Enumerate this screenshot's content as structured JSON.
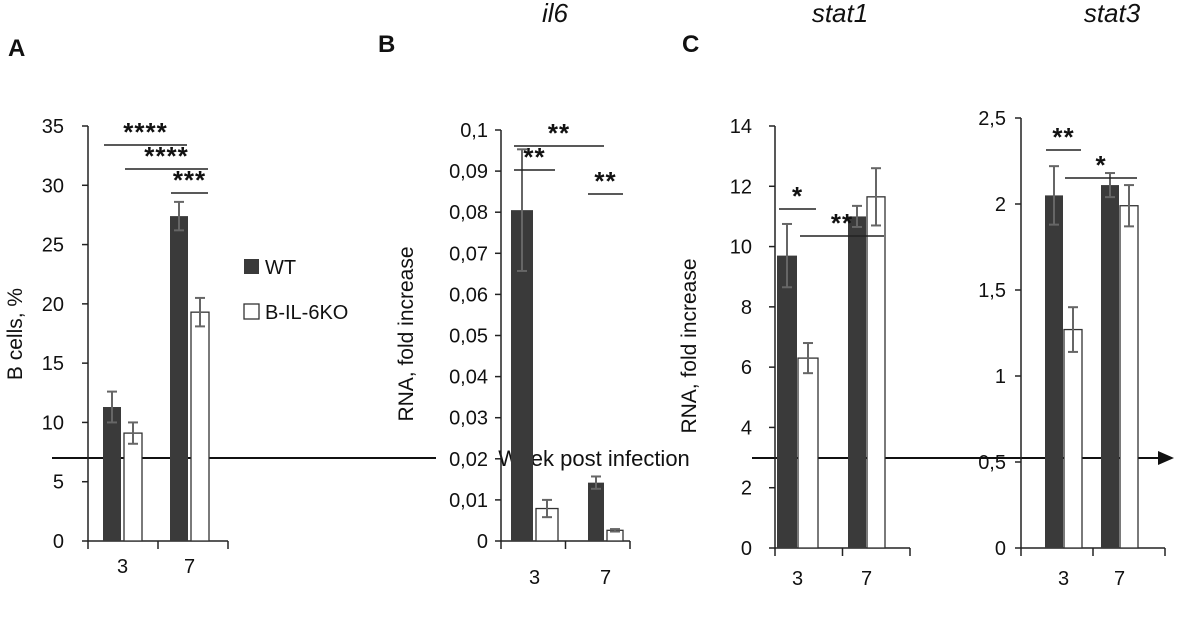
{
  "colors": {
    "wt": "#3a3a3a",
    "ko": "#ffffff",
    "ko_stroke": "#333333",
    "error_bar": "#666666"
  },
  "legend": {
    "items": [
      {
        "label": "WT",
        "key": "wt"
      },
      {
        "label": "B-IL-6KO",
        "key": "ko"
      }
    ]
  },
  "x_axis_label": "Week post infection",
  "chart_data": [
    {
      "panel": "A",
      "type": "bar",
      "title": "",
      "ylabel": "B cells, %",
      "xlabel": "Week post infection",
      "categories": [
        "3",
        "7"
      ],
      "ylim": [
        0,
        35
      ],
      "yticks": [
        "0",
        "5",
        "10",
        "15",
        "20",
        "25",
        "30",
        "35"
      ],
      "series": [
        {
          "name": "WT",
          "values": [
            11.3,
            27.4
          ],
          "errors": [
            1.3,
            1.2
          ]
        },
        {
          "name": "B-IL-6KO",
          "values": [
            9.1,
            19.3
          ],
          "errors": [
            0.9,
            1.2
          ]
        }
      ],
      "significance": [
        {
          "label": "****",
          "from": [
            0,
            0
          ],
          "to": [
            1,
            0
          ]
        },
        {
          "label": "****",
          "from": [
            0,
            1
          ],
          "to": [
            1,
            1
          ]
        },
        {
          "label": "***",
          "from": [
            1,
            0
          ],
          "to": [
            1,
            1
          ]
        }
      ]
    },
    {
      "panel": "B",
      "type": "bar",
      "title": "il6",
      "ylabel": "RNA, fold increase",
      "xlabel": "Week post infection",
      "categories": [
        "3",
        "7"
      ],
      "ylim": [
        0,
        0.1
      ],
      "yticks": [
        "0",
        "0,01",
        "0,02",
        "0,03",
        "0,04",
        "0,05",
        "0,06",
        "0,07",
        "0,08",
        "0,09",
        "0,1"
      ],
      "series": [
        {
          "name": "WT",
          "values": [
            0.0805,
            0.0142
          ],
          "errors": [
            0.0148,
            0.0015
          ]
        },
        {
          "name": "B-IL-6KO",
          "values": [
            0.0079,
            0.0026
          ],
          "errors": [
            0.0021,
            0.0003
          ]
        }
      ],
      "significance": [
        {
          "label": "**",
          "from": [
            0,
            0
          ],
          "to": [
            1,
            0
          ]
        },
        {
          "label": "**",
          "from": [
            0,
            0
          ],
          "to": [
            0,
            1
          ]
        },
        {
          "label": "**",
          "from": [
            1,
            0
          ],
          "to": [
            1,
            1
          ]
        }
      ]
    },
    {
      "panel": "C",
      "type": "bar",
      "title": "stat1",
      "ylabel": "RNA, fold increase",
      "xlabel": "Week post infection",
      "categories": [
        "3",
        "7"
      ],
      "ylim": [
        0,
        14
      ],
      "yticks": [
        "0",
        "2",
        "4",
        "6",
        "8",
        "10",
        "12",
        "14"
      ],
      "series": [
        {
          "name": "WT",
          "values": [
            9.7,
            11.0
          ],
          "errors": [
            1.05,
            0.35
          ]
        },
        {
          "name": "B-IL-6KO",
          "values": [
            6.3,
            11.65
          ],
          "errors": [
            0.5,
            0.95
          ]
        }
      ],
      "significance": [
        {
          "label": "*",
          "from": [
            0,
            0
          ],
          "to": [
            0,
            1
          ]
        },
        {
          "label": "**",
          "from": [
            0,
            1
          ],
          "to": [
            1,
            1
          ]
        }
      ]
    },
    {
      "panel": "",
      "type": "bar",
      "title": "stat3",
      "ylabel": "",
      "xlabel": "Week post infection",
      "categories": [
        "3",
        "7"
      ],
      "ylim": [
        0,
        2.5
      ],
      "yticks": [
        "0",
        "0,5",
        "1",
        "1,5",
        "2",
        "2,5"
      ],
      "series": [
        {
          "name": "WT",
          "values": [
            2.05,
            2.11
          ],
          "errors": [
            0.17,
            0.07
          ]
        },
        {
          "name": "B-IL-6KO",
          "values": [
            1.27,
            1.99
          ],
          "errors": [
            0.13,
            0.12
          ]
        }
      ],
      "significance": [
        {
          "label": "**",
          "from": [
            0,
            0
          ],
          "to": [
            0,
            1
          ]
        },
        {
          "label": "*",
          "from": [
            0,
            1
          ],
          "to": [
            1,
            1
          ]
        }
      ]
    }
  ]
}
